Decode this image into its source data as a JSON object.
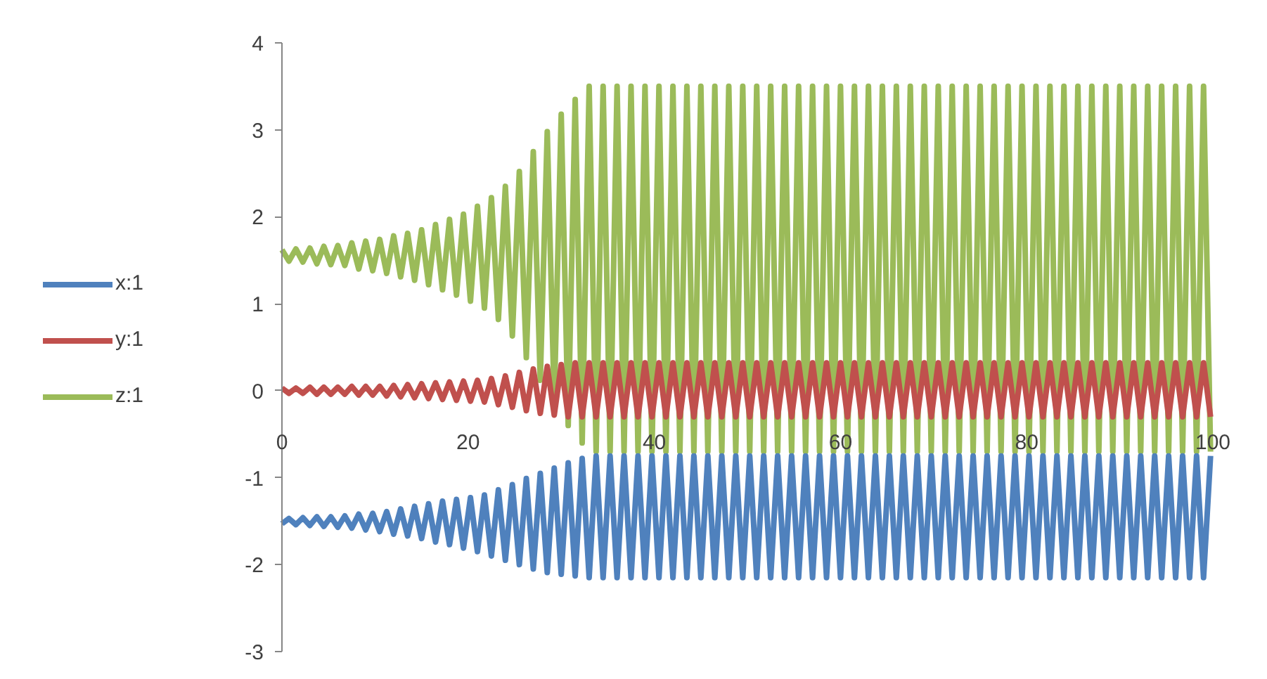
{
  "chart_data": {
    "type": "line",
    "x": [
      0,
      0.75,
      1.5,
      2.25,
      3,
      3.75,
      4.5,
      5.25,
      6,
      6.75,
      7.5,
      8.25,
      9,
      9.75,
      10.5,
      11.25,
      12,
      12.75,
      13.5,
      14.25,
      15,
      15.75,
      16.5,
      17.25,
      18,
      18.75,
      19.5,
      20.25,
      21,
      21.75,
      22.5,
      23.25,
      24,
      24.75,
      25.5,
      26.25,
      27,
      27.75,
      28.5,
      29.25,
      30,
      30.75,
      31.5,
      32.25,
      33,
      33.75,
      34.5,
      35.25,
      36,
      36.75,
      37.5,
      38.25,
      39,
      39.75,
      40.5,
      41.25,
      42,
      42.75,
      43.5,
      44.25,
      45,
      45.75,
      46.5,
      47.25,
      48,
      48.75,
      49.5,
      50.25,
      51,
      51.75,
      52.5,
      53.25,
      54,
      54.75,
      55.5,
      56.25,
      57,
      57.75,
      58.5,
      59.25,
      60,
      60.75,
      61.5,
      62.25,
      63,
      63.75,
      64.5,
      65.25,
      66,
      66.75,
      67.5,
      68.25,
      69,
      69.75,
      70.5,
      71.25,
      72,
      72.75,
      73.5,
      74.25,
      75,
      75.75,
      76.5,
      77.25,
      78,
      78.75,
      79.5,
      80.25,
      81,
      81.75,
      82.5,
      83.25,
      84,
      84.75,
      85.5,
      86.25,
      87,
      87.75,
      88.5,
      89.25,
      90,
      90.75,
      91.5,
      92.25,
      93,
      93.75,
      94.5,
      95.25,
      96,
      96.75,
      97.5,
      98.25,
      99,
      99.75
    ],
    "series": [
      {
        "name": "x:1",
        "color": "#4f81bd",
        "values": [
          -1.53,
          -1.47,
          -1.54,
          -1.46,
          -1.55,
          -1.45,
          -1.56,
          -1.45,
          -1.57,
          -1.44,
          -1.58,
          -1.42,
          -1.6,
          -1.41,
          -1.62,
          -1.39,
          -1.65,
          -1.36,
          -1.67,
          -1.33,
          -1.7,
          -1.3,
          -1.74,
          -1.27,
          -1.77,
          -1.25,
          -1.81,
          -1.23,
          -1.85,
          -1.2,
          -1.9,
          -1.14,
          -1.95,
          -1.08,
          -2,
          -1.01,
          -2.05,
          -0.95,
          -2.09,
          -0.89,
          -2.11,
          -0.83,
          -2.13,
          -0.78,
          -2.15,
          -0.75,
          -2.15,
          -0.75,
          -2.15,
          -0.75,
          -2.15,
          -0.75,
          -2.15,
          -0.75,
          -2.15,
          -0.75,
          -2.15,
          -0.75,
          -2.15,
          -0.75,
          -2.15,
          -0.75,
          -2.15,
          -0.75,
          -2.15,
          -0.75,
          -2.15,
          -0.75,
          -2.15,
          -0.75,
          -2.15,
          -0.75,
          -2.15,
          -0.75,
          -2.15,
          -0.75,
          -2.15,
          -0.75,
          -2.15,
          -0.75,
          -2.15,
          -0.75,
          -2.15,
          -0.75,
          -2.15,
          -0.75,
          -2.15,
          -0.75,
          -2.15,
          -0.75,
          -2.15,
          -0.75,
          -2.15,
          -0.75,
          -2.15,
          -0.75,
          -2.15,
          -0.75,
          -2.15,
          -0.75,
          -2.15,
          -0.75,
          -2.15,
          -0.75,
          -2.15,
          -0.75,
          -2.15,
          -0.75,
          -2.15,
          -0.75,
          -2.15,
          -0.75,
          -2.15,
          -0.75,
          -2.15,
          -0.75,
          -2.15,
          -0.75,
          -2.15,
          -0.75,
          -2.15,
          -0.75,
          -2.15,
          -0.75,
          -2.15,
          -0.75,
          -2.15,
          -0.75,
          -2.15,
          -0.75,
          -2.15,
          -0.75,
          -2.15,
          -0.75
        ]
      },
      {
        "name": "y:1",
        "color": "#c0504d",
        "values": [
          0.03,
          -0.03,
          0.03,
          -0.03,
          0.04,
          -0.04,
          0.04,
          -0.04,
          0.04,
          -0.04,
          0.05,
          -0.05,
          0.05,
          -0.05,
          0.05,
          -0.06,
          0.06,
          -0.07,
          0.07,
          -0.08,
          0.08,
          -0.09,
          0.09,
          -0.1,
          0.1,
          -0.11,
          0.11,
          -0.12,
          0.12,
          -0.13,
          0.14,
          -0.16,
          0.17,
          -0.19,
          0.21,
          -0.23,
          0.25,
          -0.26,
          0.28,
          -0.28,
          0.3,
          -0.3,
          0.32,
          -0.3,
          0.32,
          -0.3,
          0.32,
          -0.3,
          0.32,
          -0.3,
          0.32,
          -0.3,
          0.32,
          -0.3,
          0.32,
          -0.3,
          0.32,
          -0.3,
          0.32,
          -0.3,
          0.32,
          -0.3,
          0.32,
          -0.3,
          0.32,
          -0.3,
          0.32,
          -0.3,
          0.32,
          -0.3,
          0.32,
          -0.3,
          0.32,
          -0.3,
          0.32,
          -0.3,
          0.32,
          -0.3,
          0.32,
          -0.3,
          0.32,
          -0.3,
          0.32,
          -0.3,
          0.32,
          -0.3,
          0.32,
          -0.3,
          0.32,
          -0.3,
          0.32,
          -0.3,
          0.32,
          -0.3,
          0.32,
          -0.3,
          0.32,
          -0.3,
          0.32,
          -0.3,
          0.32,
          -0.3,
          0.32,
          -0.3,
          0.32,
          -0.3,
          0.32,
          -0.3,
          0.32,
          -0.3,
          0.32,
          -0.3,
          0.32,
          -0.3,
          0.32,
          -0.3,
          0.32,
          -0.3,
          0.32,
          -0.3,
          0.32,
          -0.3,
          0.32,
          -0.3,
          0.32,
          -0.3,
          0.32,
          -0.3,
          0.32,
          -0.3,
          0.32,
          -0.3,
          0.32,
          -0.3
        ]
      },
      {
        "name": "z:1",
        "color": "#9bbb59",
        "values": [
          1.62,
          1.49,
          1.63,
          1.48,
          1.64,
          1.46,
          1.66,
          1.45,
          1.67,
          1.44,
          1.7,
          1.4,
          1.72,
          1.38,
          1.74,
          1.35,
          1.78,
          1.31,
          1.81,
          1.27,
          1.85,
          1.22,
          1.91,
          1.16,
          1.97,
          1.1,
          2.03,
          1.03,
          2.12,
          0.95,
          2.22,
          0.82,
          2.35,
          0.63,
          2.52,
          0.38,
          2.75,
          0.12,
          2.98,
          -0.14,
          3.18,
          -0.4,
          3.35,
          -0.6,
          3.5,
          -0.7,
          3.5,
          -0.7,
          3.5,
          -0.7,
          3.5,
          -0.7,
          3.5,
          -0.7,
          3.5,
          -0.7,
          3.5,
          -0.7,
          3.5,
          -0.7,
          3.5,
          -0.7,
          3.5,
          -0.7,
          3.5,
          -0.7,
          3.5,
          -0.7,
          3.5,
          -0.7,
          3.5,
          -0.7,
          3.5,
          -0.7,
          3.5,
          -0.7,
          3.5,
          -0.7,
          3.5,
          -0.7,
          3.5,
          -0.7,
          3.5,
          -0.7,
          3.5,
          -0.7,
          3.5,
          -0.7,
          3.5,
          -0.7,
          3.5,
          -0.7,
          3.5,
          -0.7,
          3.5,
          -0.7,
          3.5,
          -0.7,
          3.5,
          -0.7,
          3.5,
          -0.7,
          3.5,
          -0.7,
          3.5,
          -0.7,
          3.5,
          -0.7,
          3.5,
          -0.7,
          3.5,
          -0.7,
          3.5,
          -0.7,
          3.5,
          -0.7,
          3.5,
          -0.7,
          3.5,
          -0.7,
          3.5,
          -0.7,
          3.5,
          -0.7,
          3.5,
          -0.7,
          3.5,
          -0.7,
          3.5,
          -0.7,
          3.5,
          -0.7,
          3.5,
          -0.7
        ]
      }
    ],
    "xlim": [
      0,
      100
    ],
    "ylim": [
      -3,
      4
    ],
    "xticks": [
      0,
      20,
      40,
      60,
      80,
      100
    ],
    "yticks": [
      -3,
      -2,
      -1,
      0,
      1,
      2,
      3,
      4
    ],
    "grid": false,
    "legend": "left",
    "line_style": "solid"
  }
}
